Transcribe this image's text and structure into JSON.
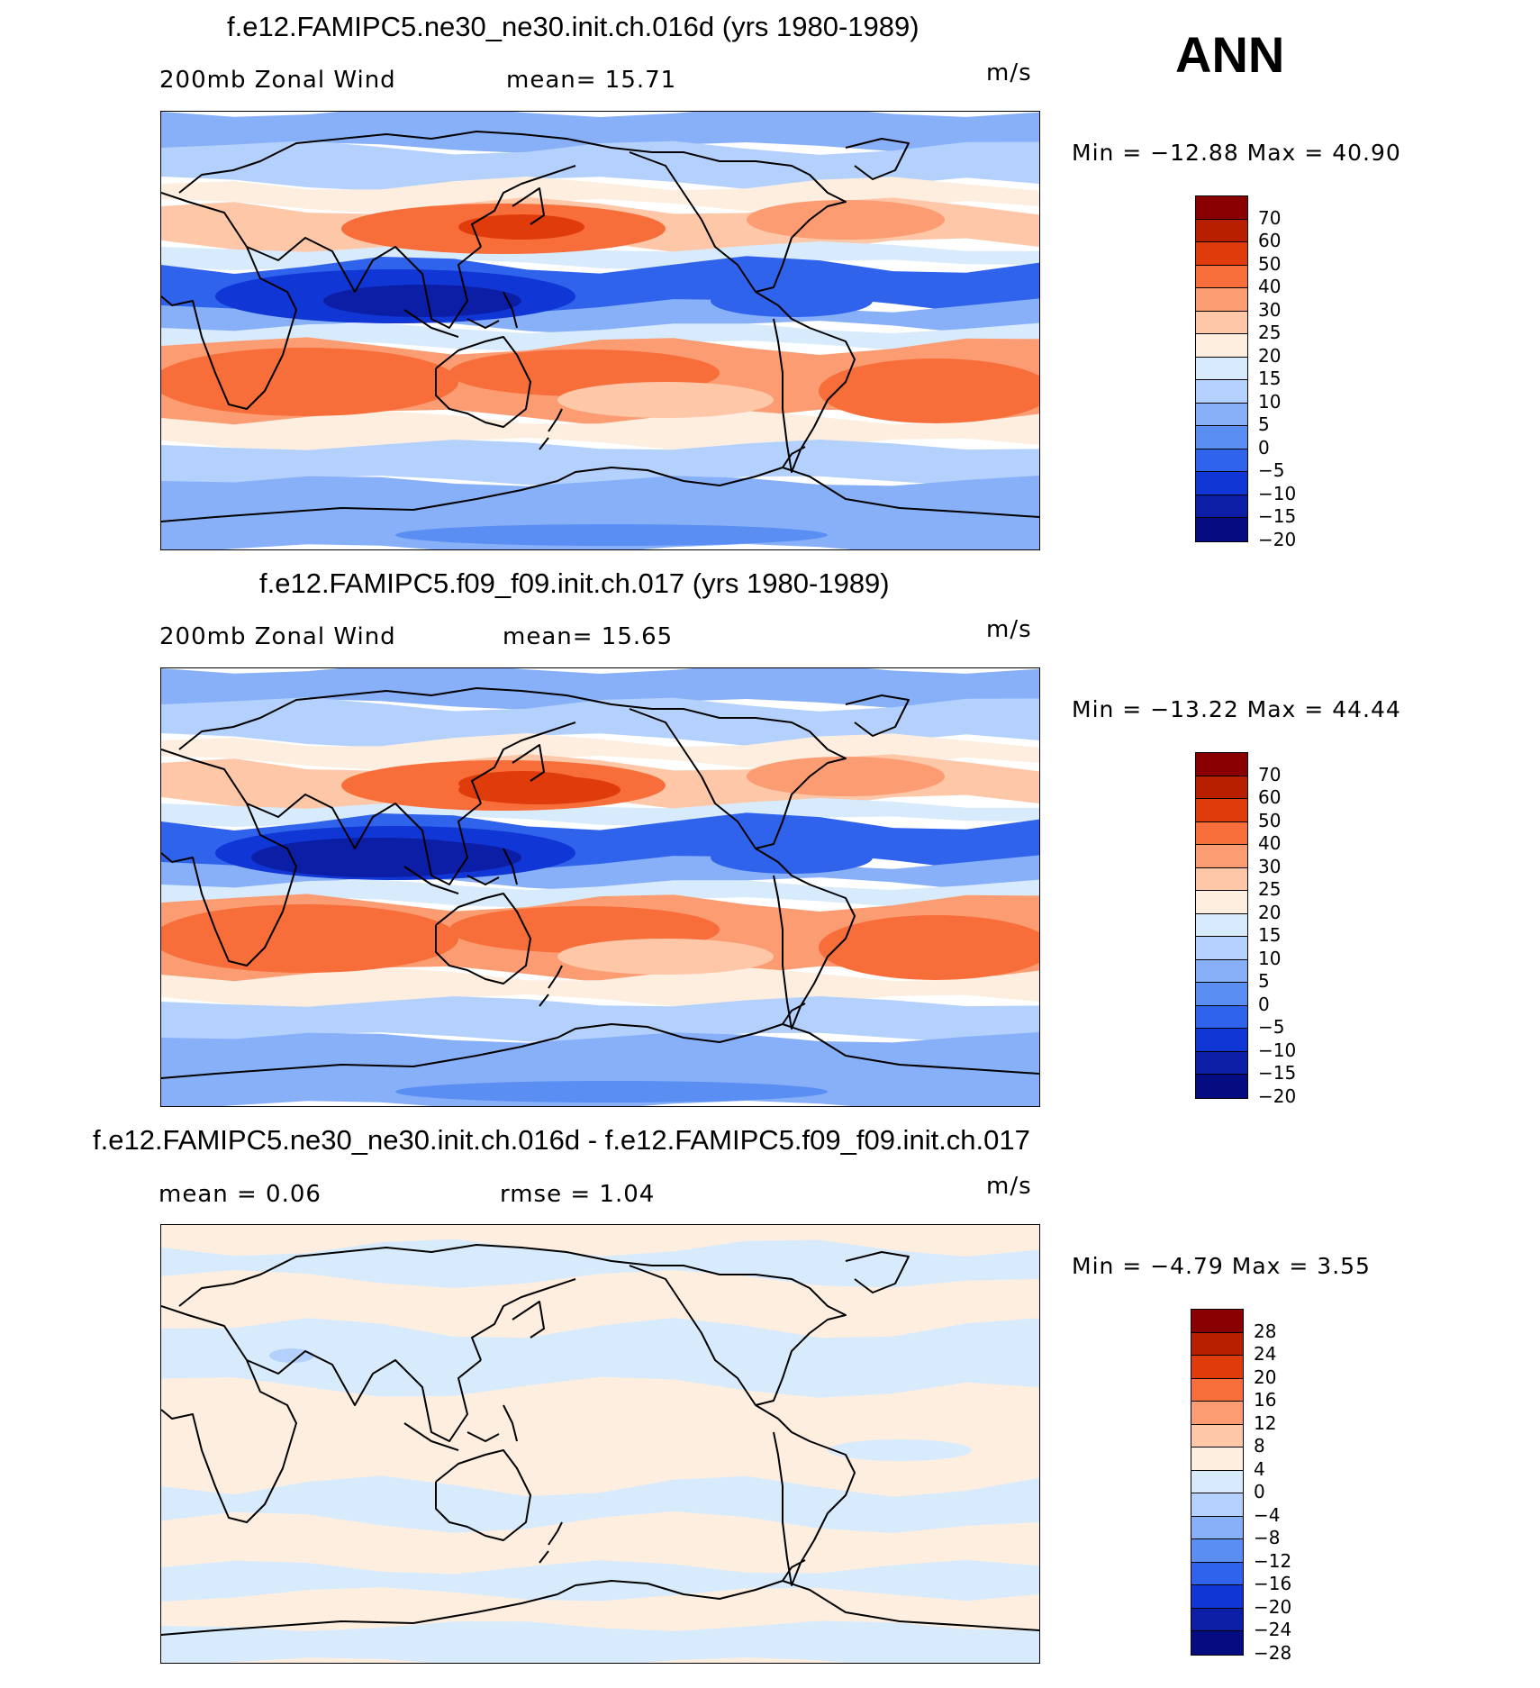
{
  "header": {
    "season": "ANN"
  },
  "panels": [
    {
      "title": "f.e12.FAMIPC5.ne30_ne30.init.ch.016d (yrs 1980-1989)",
      "left_label": "200mb Zonal Wind",
      "stat1": "mean=  15.71",
      "stat2": "",
      "units": "m/s",
      "minmax": "Min = −12.88 Max =   40.90",
      "levels": [
        "70",
        "60",
        "50",
        "40",
        "30",
        "25",
        "20",
        "15",
        "10",
        "5",
        "0",
        "−5",
        "−10",
        "−15",
        "−20"
      ],
      "kind": "field"
    },
    {
      "title": "f.e12.FAMIPC5.f09_f09.init.ch.017 (yrs 1980-1989)",
      "left_label": "200mb Zonal Wind",
      "stat1": "mean=  15.65",
      "stat2": "",
      "units": "m/s",
      "minmax": "Min = −13.22 Max =   44.44",
      "levels": [
        "70",
        "60",
        "50",
        "40",
        "30",
        "25",
        "20",
        "15",
        "10",
        "5",
        "0",
        "−5",
        "−10",
        "−15",
        "−20"
      ],
      "kind": "field"
    },
    {
      "title": "f.e12.FAMIPC5.ne30_ne30.init.ch.016d - f.e12.FAMIPC5.f09_f09.init.ch.017",
      "left_label": "mean =   0.06",
      "stat1": "rmse =   1.04",
      "stat2": "",
      "units": "m/s",
      "minmax": "Min =  −4.79 Max =   3.55",
      "levels": [
        "28",
        "24",
        "20",
        "16",
        "12",
        "8",
        "4",
        "0",
        "−4",
        "−8",
        "−12",
        "−16",
        "−20",
        "−24",
        "−28"
      ],
      "kind": "diff"
    }
  ],
  "colors": {
    "field_scale": [
      "#8a0000",
      "#b81e00",
      "#e03c0b",
      "#f86e3a",
      "#fb9c72",
      "#fdc7a8",
      "#fdeee0",
      "#d7ebfd",
      "#b3d1fc",
      "#87b0f8",
      "#5b8ef2",
      "#2f63ec",
      "#1036d6",
      "#0c1ea6",
      "#050c82"
    ],
    "diff_scale": [
      "#8a0000",
      "#b81e00",
      "#e03c0b",
      "#f86e3a",
      "#fb9c72",
      "#fdc7a8",
      "#fdeee0",
      "#d7ebfd",
      "#b3d1fc",
      "#87b0f8",
      "#5b8ef2",
      "#2f63ec",
      "#1036d6",
      "#0c1ea6",
      "#050c82"
    ],
    "land_outline": "#000000"
  }
}
